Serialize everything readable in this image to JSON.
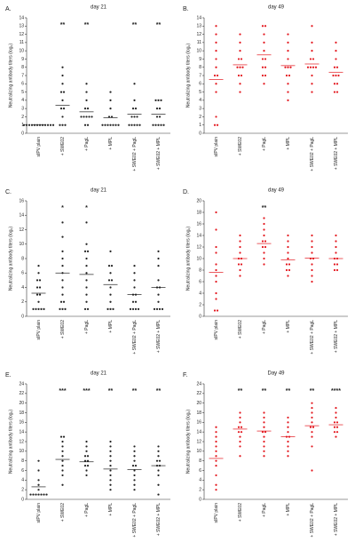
{
  "chart_data": [
    {
      "type": "strip",
      "panel": "A.",
      "title": "day 21",
      "y_label": "Neutralizing antibody titers (log₂)",
      "color": "#222222",
      "categories": [
        "sIPV plain",
        "+ SWE02",
        "+ PagL",
        "+ MPL",
        "+ SWE02 + PagL",
        "+ SWE02 + MPL"
      ],
      "values": [
        [
          1,
          1,
          1,
          1,
          1,
          1,
          1,
          1,
          1,
          1,
          1,
          1
        ],
        [
          8,
          7,
          6,
          5,
          5,
          4,
          3,
          3,
          2,
          1,
          1,
          1
        ],
        [
          6,
          5,
          4,
          3,
          3,
          2,
          2,
          2,
          2,
          2,
          1,
          1
        ],
        [
          5,
          4,
          3,
          2,
          2,
          1,
          1,
          1,
          1,
          1,
          1,
          1
        ],
        [
          6,
          4,
          3,
          3,
          2,
          2,
          2,
          1,
          1,
          1,
          1,
          1
        ],
        [
          4,
          4,
          4,
          3,
          3,
          2,
          2,
          1,
          1,
          1,
          1,
          1
        ]
      ],
      "means": [
        1,
        3.4,
        2.6,
        1.9,
        2.3,
        2.3
      ],
      "annotations": [
        null,
        "**",
        "**",
        null,
        "**",
        "**"
      ],
      "ylim": [
        0,
        14
      ],
      "yticks": [
        0,
        1,
        2,
        3,
        4,
        5,
        6,
        7,
        8,
        9,
        10,
        11,
        12,
        13,
        14
      ]
    },
    {
      "type": "strip",
      "panel": "B.",
      "title": "day 49",
      "y_label": "Neutralizing antibody titers (log₂)",
      "color": "#e3161d",
      "categories": [
        "sIPV plain",
        "+ SWE02",
        "+ PagL",
        "+ MPL",
        "+ SWE02 + PagL",
        "+ SWE02 + MPL"
      ],
      "values": [
        [
          13,
          12,
          11,
          10,
          9,
          8,
          7,
          7,
          6,
          5,
          2,
          1,
          1
        ],
        [
          12,
          11,
          10,
          9,
          9,
          8,
          8,
          8,
          7,
          7,
          6,
          5
        ],
        [
          13,
          13,
          12,
          11,
          10,
          9,
          9,
          8,
          8,
          7,
          7,
          6
        ],
        [
          12,
          11,
          10,
          9,
          8,
          8,
          8,
          7,
          7,
          6,
          5,
          4
        ],
        [
          13,
          11,
          10,
          9,
          9,
          8,
          8,
          8,
          8,
          7,
          6,
          5
        ],
        [
          11,
          10,
          9,
          8,
          8,
          7,
          7,
          7,
          6,
          6,
          5,
          5
        ]
      ],
      "means": [
        6.5,
        8.3,
        9.5,
        8.2,
        8.4,
        7.4
      ],
      "annotations": [
        null,
        null,
        null,
        null,
        null,
        null
      ],
      "ylim": [
        0,
        14
      ],
      "yticks": [
        0,
        1,
        2,
        3,
        4,
        5,
        6,
        7,
        8,
        9,
        10,
        11,
        12,
        13,
        14
      ]
    },
    {
      "type": "strip",
      "panel": "C.",
      "title": "day 21",
      "y_label": "Neutralizing antibody titers (log₂)",
      "color": "#222222",
      "categories": [
        "sIPV plain",
        "+ SWE02",
        "+ PagL",
        "+ MPL",
        "+ SWE02 + PagL",
        "+ SWE02 + MPL"
      ],
      "values": [
        [
          7,
          6,
          5,
          5,
          4,
          4,
          3,
          3,
          2,
          1,
          1,
          1,
          1,
          1
        ],
        [
          13,
          11,
          9,
          8,
          7,
          6,
          5,
          4,
          3,
          2,
          2,
          1,
          1,
          1
        ],
        [
          13,
          10,
          9,
          9,
          8,
          7,
          6,
          5,
          4,
          3,
          2,
          1,
          1
        ],
        [
          9,
          7,
          7,
          6,
          5,
          5,
          4,
          3,
          2,
          1,
          1,
          1
        ],
        [
          7,
          6,
          5,
          4,
          3,
          3,
          2,
          2,
          1,
          1,
          1,
          1
        ],
        [
          9,
          8,
          7,
          5,
          4,
          4,
          3,
          2,
          1,
          1,
          1,
          1
        ]
      ],
      "means": [
        3.2,
        6,
        5.8,
        4.4,
        3,
        4
      ],
      "annotations": [
        null,
        "*",
        "*",
        null,
        null,
        null
      ],
      "ylim": [
        0,
        16
      ],
      "yticks": [
        0,
        2,
        4,
        6,
        8,
        10,
        12,
        14,
        16
      ]
    },
    {
      "type": "strip",
      "panel": "D.",
      "title": "day 49",
      "y_label": "Neutralizing antibody titers (log₂)",
      "color": "#e3161d",
      "categories": [
        "sIPV plain",
        "+ SWE02",
        "+ PagL",
        "+ MPL",
        "+ SWE02 + PagL",
        "+ SWE02 + MPL"
      ],
      "values": [
        [
          18,
          15,
          12,
          11,
          9,
          8,
          7,
          6,
          4,
          3,
          1,
          1
        ],
        [
          14,
          13,
          12,
          11,
          10,
          10,
          9,
          9,
          8,
          7
        ],
        [
          17,
          16,
          15,
          14,
          13,
          13,
          12,
          12,
          11,
          10,
          9
        ],
        [
          14,
          13,
          12,
          11,
          10,
          9,
          9,
          8,
          8,
          7
        ],
        [
          14,
          13,
          12,
          11,
          10,
          10,
          9,
          8,
          7,
          6
        ],
        [
          14,
          13,
          12,
          11,
          10,
          10,
          9,
          9,
          8,
          8
        ]
      ],
      "means": [
        7.6,
        10,
        12.6,
        9.8,
        10.1,
        10
      ],
      "annotations": [
        null,
        null,
        "**",
        null,
        null,
        null
      ],
      "ylim": [
        0,
        20
      ],
      "yticks": [
        0,
        2,
        4,
        6,
        8,
        10,
        12,
        14,
        16,
        18,
        20
      ]
    },
    {
      "type": "strip",
      "panel": "E.",
      "title": "day 21",
      "y_label": "Neutralizing antibody titers (log₂)",
      "color": "#222222",
      "categories": [
        "sIPV plain",
        "+ SWE02",
        "+ PagL",
        "+ MPL",
        "+ SWE02 + PagL",
        "+ SWE02 + MPL"
      ],
      "values": [
        [
          8,
          6,
          4,
          3,
          2,
          1,
          1,
          1,
          1,
          1,
          1,
          1
        ],
        [
          13,
          13,
          12,
          11,
          10,
          9,
          8,
          7,
          6,
          5,
          3
        ],
        [
          12,
          11,
          10,
          9,
          9,
          8,
          8,
          7,
          7,
          6,
          5
        ],
        [
          12,
          11,
          10,
          9,
          8,
          7,
          6,
          5,
          4,
          3,
          2
        ],
        [
          11,
          10,
          9,
          8,
          7,
          7,
          6,
          5,
          4,
          3,
          2
        ],
        [
          11,
          10,
          9,
          8,
          8,
          7,
          7,
          6,
          5,
          3,
          1
        ]
      ],
      "means": [
        2.6,
        8.3,
        7.8,
        6.3,
        6.2,
        7
      ],
      "annotations": [
        null,
        "***",
        "***",
        "**",
        "**",
        "**"
      ],
      "ylim": [
        0,
        24
      ],
      "yticks": [
        0,
        2,
        4,
        6,
        8,
        10,
        12,
        14,
        16,
        18,
        20,
        22,
        24
      ]
    },
    {
      "type": "strip",
      "panel": "F.",
      "title": "Day 49",
      "y_label": "Neutralizing antibody titers (log₂)",
      "color": "#e3161d",
      "categories": [
        "sIPV plain",
        "+ SWE02",
        "+ PagL",
        "+ MPL",
        "+ SWE02 + PagL",
        "+ SWE02 + MPL"
      ],
      "values": [
        [
          15,
          14,
          13,
          12,
          11,
          10,
          9,
          8,
          7,
          5,
          3,
          2
        ],
        [
          18,
          17,
          16,
          15,
          15,
          14,
          14,
          13,
          12,
          11,
          9
        ],
        [
          18,
          17,
          16,
          15,
          14,
          14,
          13,
          12,
          11,
          10,
          9
        ],
        [
          17,
          16,
          15,
          14,
          13,
          13,
          12,
          11,
          10,
          9
        ],
        [
          20,
          19,
          18,
          17,
          16,
          15,
          15,
          14,
          13,
          11,
          6
        ],
        [
          19,
          18,
          17,
          16,
          16,
          15,
          15,
          14,
          14,
          13
        ]
      ],
      "means": [
        8.5,
        14.6,
        14.2,
        13,
        15.3,
        15.5
      ],
      "annotations": [
        null,
        "**",
        "**",
        "**",
        "**",
        "****"
      ],
      "ylim": [
        0,
        24
      ],
      "yticks": [
        0,
        2,
        4,
        6,
        8,
        10,
        12,
        14,
        16,
        18,
        20,
        22,
        24
      ]
    }
  ]
}
